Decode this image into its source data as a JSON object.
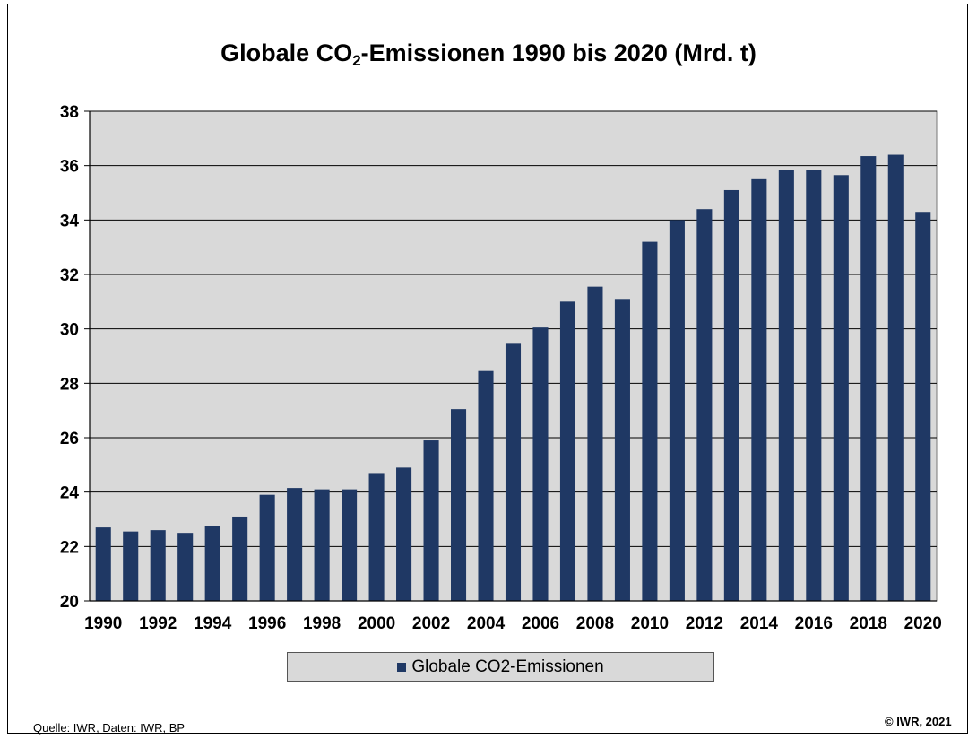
{
  "title": {
    "prefix": "Globale CO",
    "subscript": "2",
    "suffix": "-Emissionen 1990 bis 2020 (Mrd. t)"
  },
  "chart_data": {
    "type": "bar",
    "title": "Globale CO2-Emissionen 1990 bis 2020 (Mrd. t)",
    "xlabel": "",
    "ylabel": "",
    "ylim": [
      20,
      38
    ],
    "yticks": [
      20,
      22,
      24,
      26,
      28,
      30,
      32,
      34,
      36,
      38
    ],
    "grid": true,
    "legend_position": "bottom",
    "categories": [
      "1990",
      "1991",
      "1992",
      "1993",
      "1994",
      "1995",
      "1996",
      "1997",
      "1998",
      "1999",
      "2000",
      "2001",
      "2002",
      "2003",
      "2004",
      "2005",
      "2006",
      "2007",
      "2008",
      "2009",
      "2010",
      "2011",
      "2012",
      "2013",
      "2014",
      "2015",
      "2016",
      "2017",
      "2018",
      "2019",
      "2020"
    ],
    "xtick_labels": [
      "1990",
      "1992",
      "1994",
      "1996",
      "1998",
      "2000",
      "2002",
      "2004",
      "2006",
      "2008",
      "2010",
      "2012",
      "2014",
      "2016",
      "2018",
      "2020"
    ],
    "series": [
      {
        "name": "Globale CO2-Emissionen",
        "color": "#1f3864",
        "values": [
          22.7,
          22.55,
          22.6,
          22.5,
          22.75,
          23.1,
          23.9,
          24.15,
          24.1,
          24.1,
          24.7,
          24.9,
          25.9,
          27.05,
          28.45,
          29.45,
          30.05,
          31.0,
          31.55,
          31.1,
          33.2,
          34.0,
          34.4,
          35.1,
          35.5,
          35.85,
          35.85,
          35.65,
          36.35,
          36.4,
          34.3
        ]
      }
    ],
    "plot_background": "#d9d9d9"
  },
  "legend": {
    "label": "Globale CO2-Emissionen"
  },
  "footer": {
    "source": "Quelle:  IWR, Daten: IWR, BP",
    "copyright": "© IWR, 2021"
  }
}
